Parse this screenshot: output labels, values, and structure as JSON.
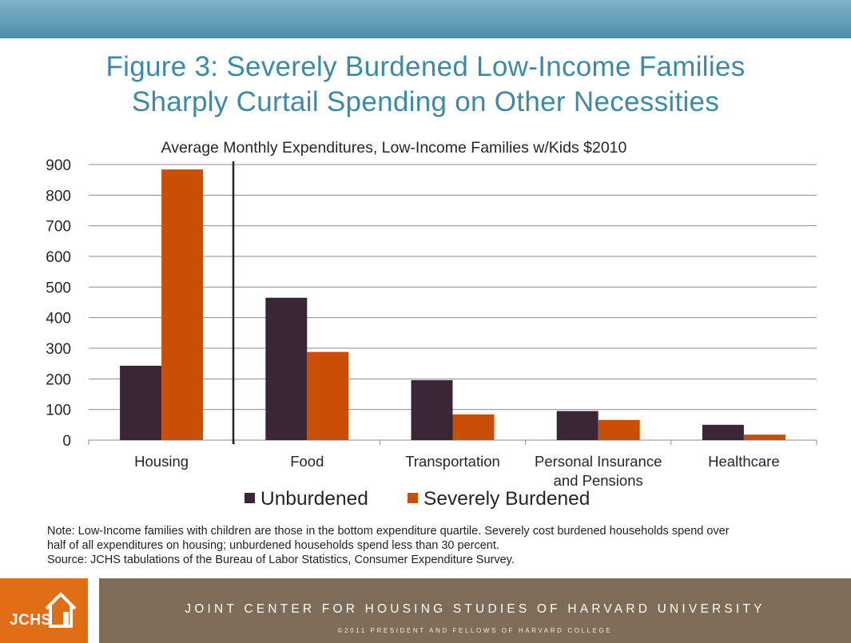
{
  "header": {
    "title_line1": "Figure 3: Severely Burdened Low-Income Families",
    "title_line2": "Sharply Curtail Spending on Other Necessities"
  },
  "chart_data": {
    "type": "bar",
    "subtitle": "Average Monthly Expenditures, Low-Income Families w/Kids $2010",
    "categories": [
      [
        "Housing"
      ],
      [
        "Food"
      ],
      [
        "Transportation"
      ],
      [
        "Personal Insurance",
        "and Pensions"
      ],
      [
        "Healthcare"
      ]
    ],
    "series": [
      {
        "name": "Unburdened",
        "color": "#3b2637",
        "values": [
          243,
          465,
          196,
          95,
          50
        ]
      },
      {
        "name": "Severely Burdened",
        "color": "#c94e06",
        "values": [
          884,
          288,
          84,
          66,
          18
        ]
      }
    ],
    "yticks": [
      "0",
      "100",
      "200",
      "300",
      "400",
      "500",
      "600",
      "700",
      "800",
      "900"
    ],
    "ylim": [
      0,
      900
    ],
    "grid": true,
    "legend_position": "bottom",
    "divider_after_category": 0
  },
  "note": {
    "line1": "Note: Low-Income families with children are those in the bottom expenditure quartile. Severely cost burdened households spend over",
    "line2": "half of all expenditures on housing; unburdened households spend less than 30 percent.",
    "line3": "Source: JCHS tabulations of the Bureau of Labor Statistics, Consumer Expenditure Survey."
  },
  "footer": {
    "logo_text": "JCHS",
    "org_name": "JOINT CENTER FOR HOUSING STUDIES OF HARVARD UNIVERSITY",
    "copyright": "©2011 PRESIDENT AND FELLOWS OF HARVARD COLLEGE"
  }
}
